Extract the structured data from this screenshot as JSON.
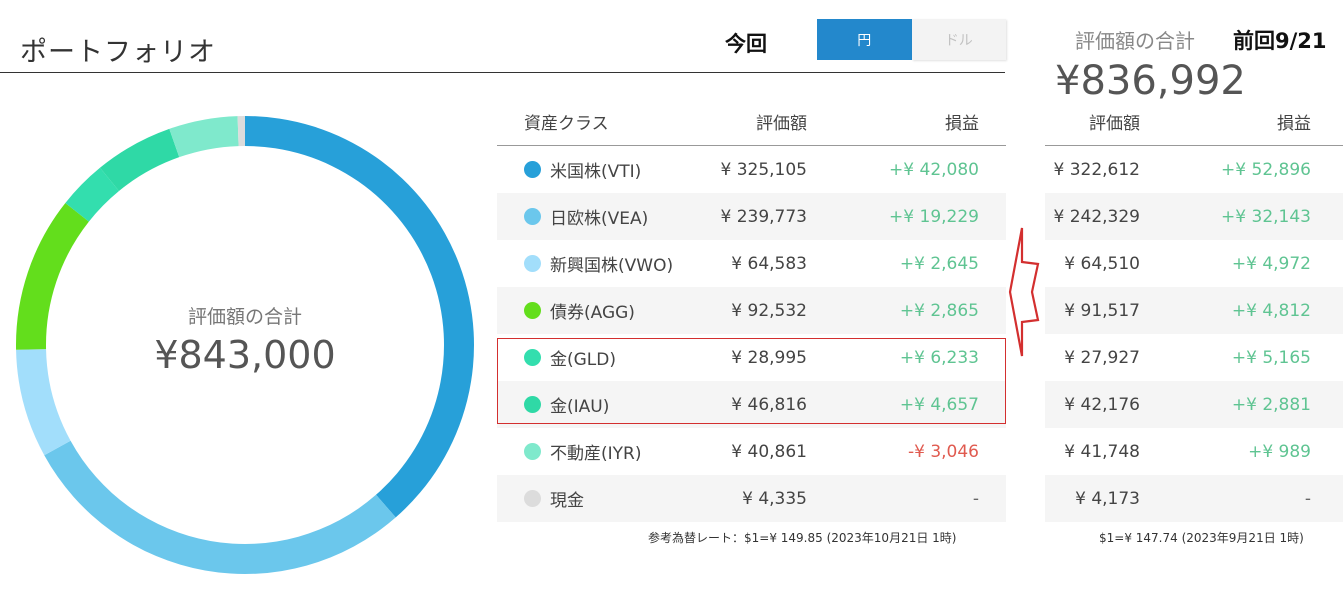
{
  "page": {
    "title": "ポートフォリオ",
    "now_label": "今回",
    "currency_toggle": {
      "yen": "円",
      "dollar": "ドル",
      "selected": "円"
    },
    "prev_total_label": "評価額の合計",
    "prev_label": "前回9/21",
    "prev_total": "¥836,992"
  },
  "donut": {
    "center_label": "評価額の合計",
    "center_value": "¥843,000"
  },
  "current_table": {
    "headers": {
      "asset": "資産クラス",
      "value": "評価額",
      "pl": "損益"
    },
    "rows": [
      {
        "name": "米国株(VTI)",
        "value": "¥ 325,105",
        "pl": "+¥ 42,080",
        "color": "#27a0d9",
        "amount": 325105
      },
      {
        "name": "日欧株(VEA)",
        "value": "¥ 239,773",
        "pl": "+¥ 19,229",
        "color": "#6bc7ec",
        "amount": 239773
      },
      {
        "name": "新興国株(VWO)",
        "value": "¥ 64,583",
        "pl": "+¥ 2,645",
        "color": "#a2defb",
        "amount": 64583
      },
      {
        "name": "債券(AGG)",
        "value": "¥ 92,532",
        "pl": "+¥ 2,865",
        "color": "#63de1c",
        "amount": 92532
      },
      {
        "name": "金(GLD)",
        "value": "¥ 28,995",
        "pl": "+¥ 6,233",
        "color": "#33deae",
        "amount": 28995
      },
      {
        "name": "金(IAU)",
        "value": "¥ 46,816",
        "pl": "+¥ 4,657",
        "color": "#2fd9a6",
        "amount": 46816
      },
      {
        "name": "不動産(IYR)",
        "value": "¥ 40,861",
        "pl": "-¥ 3,046",
        "color": "#7fe9cc",
        "amount": 40861
      },
      {
        "name": "現金",
        "value": "¥ 4,335",
        "pl": "-",
        "color": "#dcdcdc",
        "amount": 4335
      }
    ],
    "note": "参考為替レート：$1=¥ 149.85 (2023年10月21日 1時)"
  },
  "previous_table": {
    "headers": {
      "value": "評価額",
      "pl": "損益"
    },
    "rows": [
      {
        "value": "¥ 322,612",
        "pl": "+¥ 52,896"
      },
      {
        "value": "¥ 242,329",
        "pl": "+¥ 32,143"
      },
      {
        "value": "¥ 64,510",
        "pl": "+¥ 4,972"
      },
      {
        "value": "¥ 91,517",
        "pl": "+¥ 4,812"
      },
      {
        "value": "¥ 27,927",
        "pl": "+¥ 5,165"
      },
      {
        "value": "¥ 42,176",
        "pl": "+¥ 2,881"
      },
      {
        "value": "¥ 41,748",
        "pl": "+¥ 989"
      },
      {
        "value": "¥ 4,173",
        "pl": "-"
      }
    ],
    "note": "$1=¥ 147.74 (2023年9月21日 1時)"
  },
  "colors": {
    "accent": "#2388cc",
    "positive": "#5fc492",
    "negative": "#e05a4f",
    "highlight_border": "#d32f2f"
  }
}
